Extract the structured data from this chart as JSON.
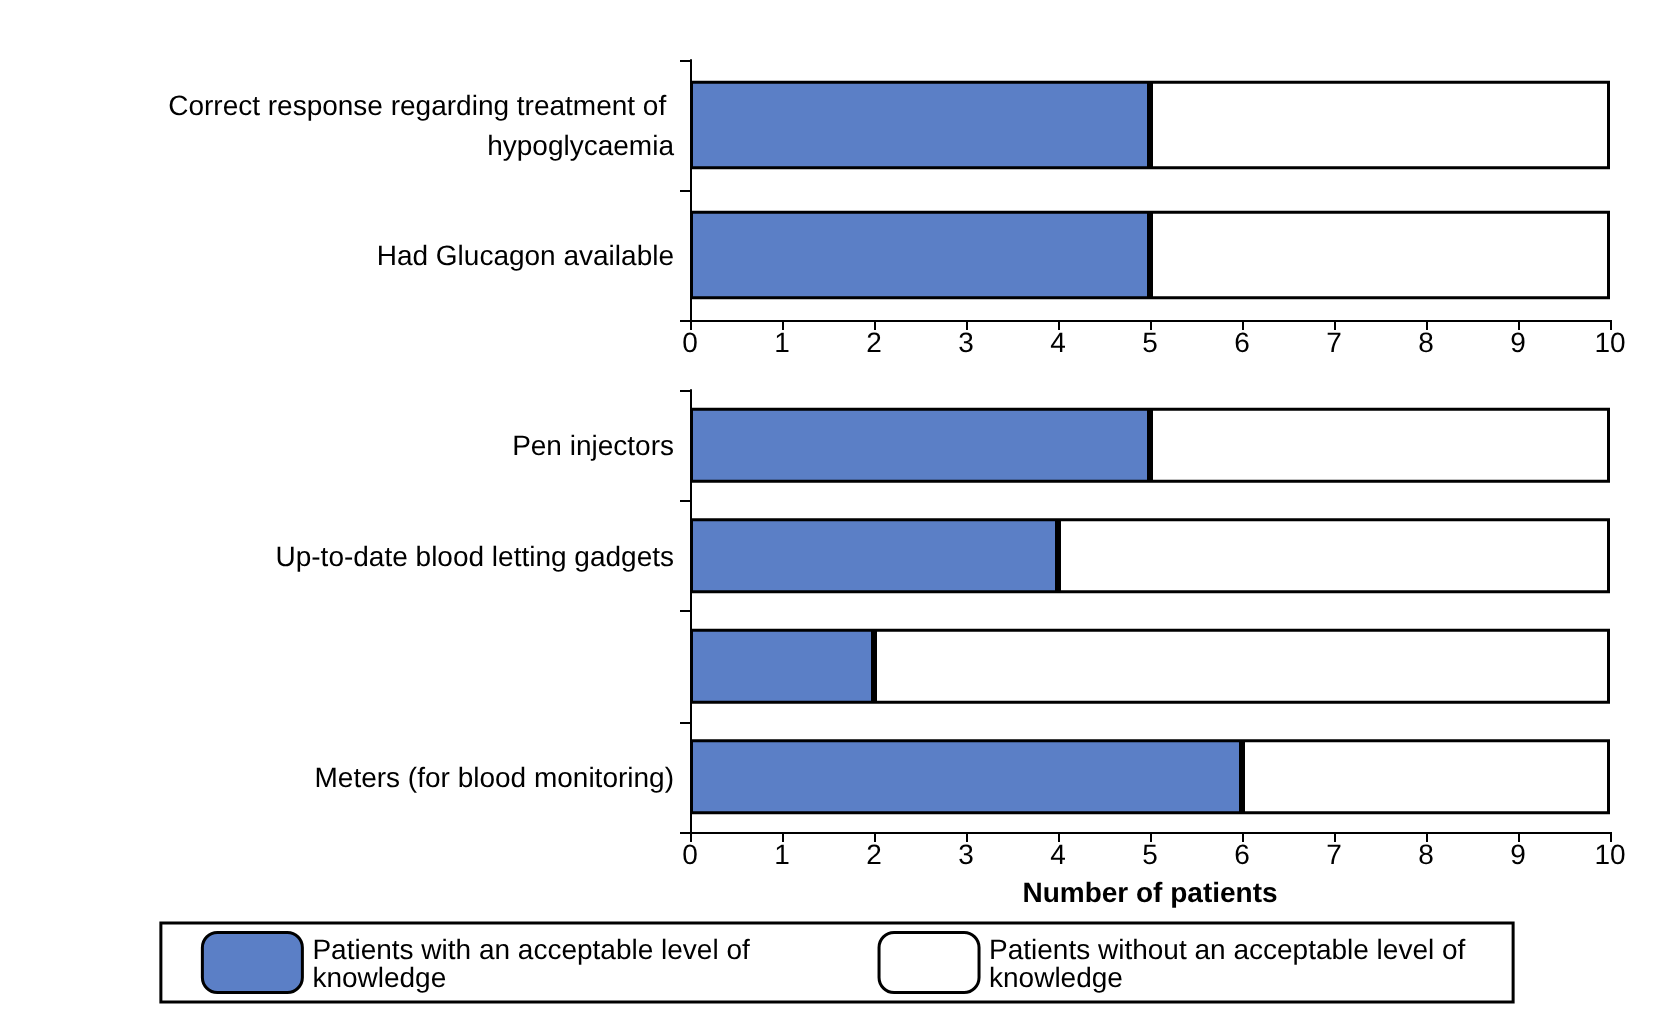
{
  "chart_data": [
    {
      "type": "bar",
      "orientation": "horizontal",
      "stacked": true,
      "categories": [
        "Correct response regarding treatment of hypoglycaemia",
        "Had Glucagon available"
      ],
      "series": [
        {
          "color": "#5b7fc6",
          "values": [
            5,
            5
          ]
        },
        {
          "color": "#ffffff",
          "values": [
            5,
            5
          ]
        }
      ],
      "xlim": [
        0,
        10
      ],
      "xticks": [
        0,
        1,
        2,
        3,
        4,
        5,
        6,
        7,
        8,
        9,
        10
      ],
      "grid": false,
      "legend": false
    },
    {
      "type": "bar",
      "orientation": "horizontal",
      "stacked": true,
      "categories": [
        "Pen injectors",
        "Up-to-date blood letting gadgets",
        null,
        "Meters (for blood monitoring)"
      ],
      "series": [
        {
          "name": "Patients with an acceptable level of knowledge",
          "color": "#5b7fc6",
          "values": [
            5,
            4,
            2,
            6
          ]
        },
        {
          "name": "Patients without an acceptable level of knowledge",
          "color": "#ffffff",
          "values": [
            5,
            6,
            8,
            4
          ]
        }
      ],
      "xlim": [
        0,
        10
      ],
      "xticks": [
        0,
        1,
        2,
        3,
        4,
        5,
        6,
        7,
        8,
        9,
        10
      ],
      "xlabel": "Number of patients",
      "grid": false,
      "legend": "bottom"
    }
  ]
}
